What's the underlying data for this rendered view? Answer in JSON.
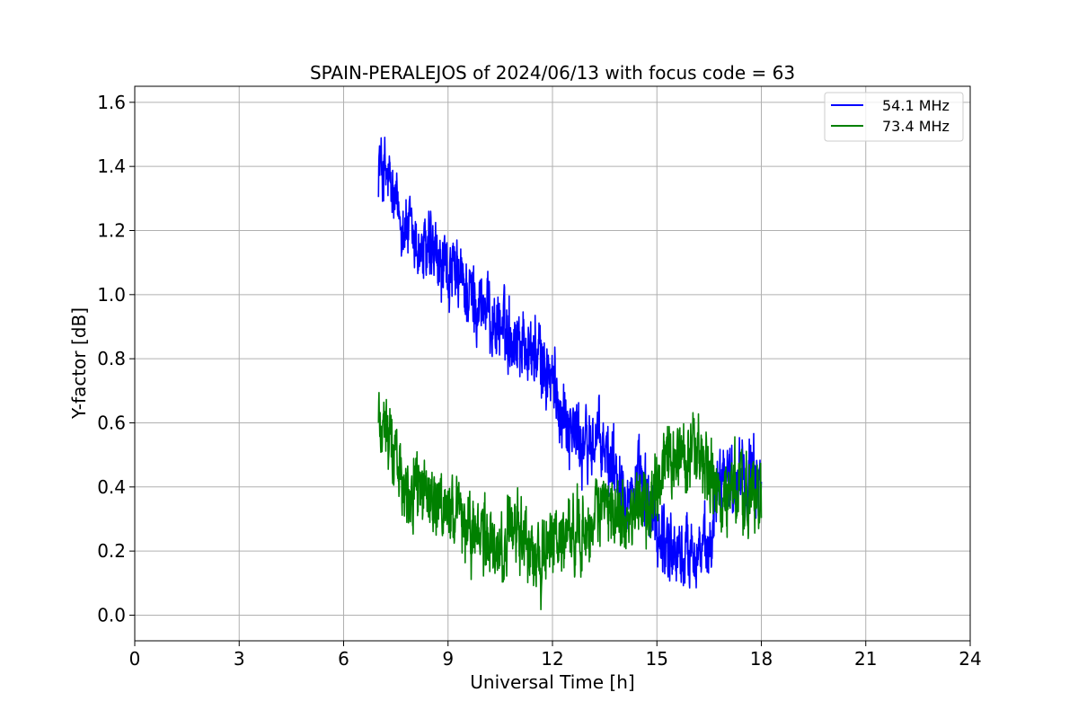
{
  "chart_data": {
    "type": "line",
    "title": "SPAIN-PERALEJOS of 2024/06/13 with focus code = 63",
    "xlabel": "Universal Time [h]",
    "ylabel": "Y-factor [dB]",
    "xlim": [
      0,
      24
    ],
    "ylim": [
      -0.08,
      1.65
    ],
    "xticks": [
      0,
      3,
      6,
      9,
      12,
      15,
      18,
      21,
      24
    ],
    "xtick_labels": [
      "0",
      "3",
      "6",
      "9",
      "12",
      "15",
      "18",
      "21",
      "24"
    ],
    "yticks": [
      0.0,
      0.2,
      0.4,
      0.6,
      0.8,
      1.0,
      1.2,
      1.4,
      1.6
    ],
    "ytick_labels": [
      "0.0",
      "0.2",
      "0.4",
      "0.6",
      "0.8",
      "1.0",
      "1.2",
      "1.4",
      "1.6"
    ],
    "grid": true,
    "legend_position": "top-right",
    "series": [
      {
        "name": "54.1 MHz",
        "color": "#0000ff",
        "x": [
          7.0,
          7.25,
          7.5,
          7.75,
          8.0,
          8.25,
          8.5,
          8.75,
          9.0,
          9.25,
          9.5,
          9.75,
          10.0,
          10.25,
          10.5,
          10.75,
          11.0,
          11.25,
          11.5,
          11.75,
          12.0,
          12.25,
          12.5,
          12.75,
          13.0,
          13.25,
          13.5,
          13.75,
          14.0,
          14.25,
          14.5,
          14.75,
          15.0,
          15.25,
          15.5,
          15.75,
          16.0,
          16.25,
          16.5,
          16.75,
          17.0,
          17.25,
          17.5,
          17.75,
          18.0
        ],
        "values": [
          1.42,
          1.36,
          1.27,
          1.22,
          1.17,
          1.12,
          1.13,
          1.08,
          1.06,
          1.05,
          1.02,
          0.98,
          0.97,
          0.92,
          0.9,
          0.88,
          0.87,
          0.84,
          0.81,
          0.78,
          0.72,
          0.65,
          0.6,
          0.55,
          0.52,
          0.55,
          0.5,
          0.48,
          0.44,
          0.38,
          0.4,
          0.34,
          0.26,
          0.24,
          0.2,
          0.18,
          0.22,
          0.2,
          0.18,
          0.46,
          0.45,
          0.42,
          0.47,
          0.4,
          0.45
        ]
      },
      {
        "name": "73.4 MHz",
        "color": "#008000",
        "x": [
          7.0,
          7.25,
          7.5,
          7.75,
          8.0,
          8.25,
          8.5,
          8.75,
          9.0,
          9.25,
          9.5,
          9.75,
          10.0,
          10.25,
          10.5,
          10.75,
          11.0,
          11.25,
          11.5,
          11.75,
          12.0,
          12.25,
          12.5,
          12.75,
          13.0,
          13.25,
          13.5,
          13.75,
          14.0,
          14.25,
          14.5,
          14.75,
          15.0,
          15.25,
          15.5,
          15.75,
          16.0,
          16.25,
          16.5,
          16.75,
          17.0,
          17.25,
          17.5,
          17.75,
          18.0
        ],
        "values": [
          0.62,
          0.56,
          0.5,
          0.42,
          0.38,
          0.4,
          0.36,
          0.32,
          0.34,
          0.3,
          0.28,
          0.26,
          0.24,
          0.22,
          0.18,
          0.24,
          0.26,
          0.22,
          0.2,
          0.18,
          0.22,
          0.24,
          0.26,
          0.28,
          0.26,
          0.3,
          0.32,
          0.3,
          0.34,
          0.3,
          0.36,
          0.32,
          0.42,
          0.48,
          0.46,
          0.5,
          0.52,
          0.48,
          0.44,
          0.36,
          0.38,
          0.4,
          0.36,
          0.38,
          0.34
        ]
      }
    ]
  }
}
